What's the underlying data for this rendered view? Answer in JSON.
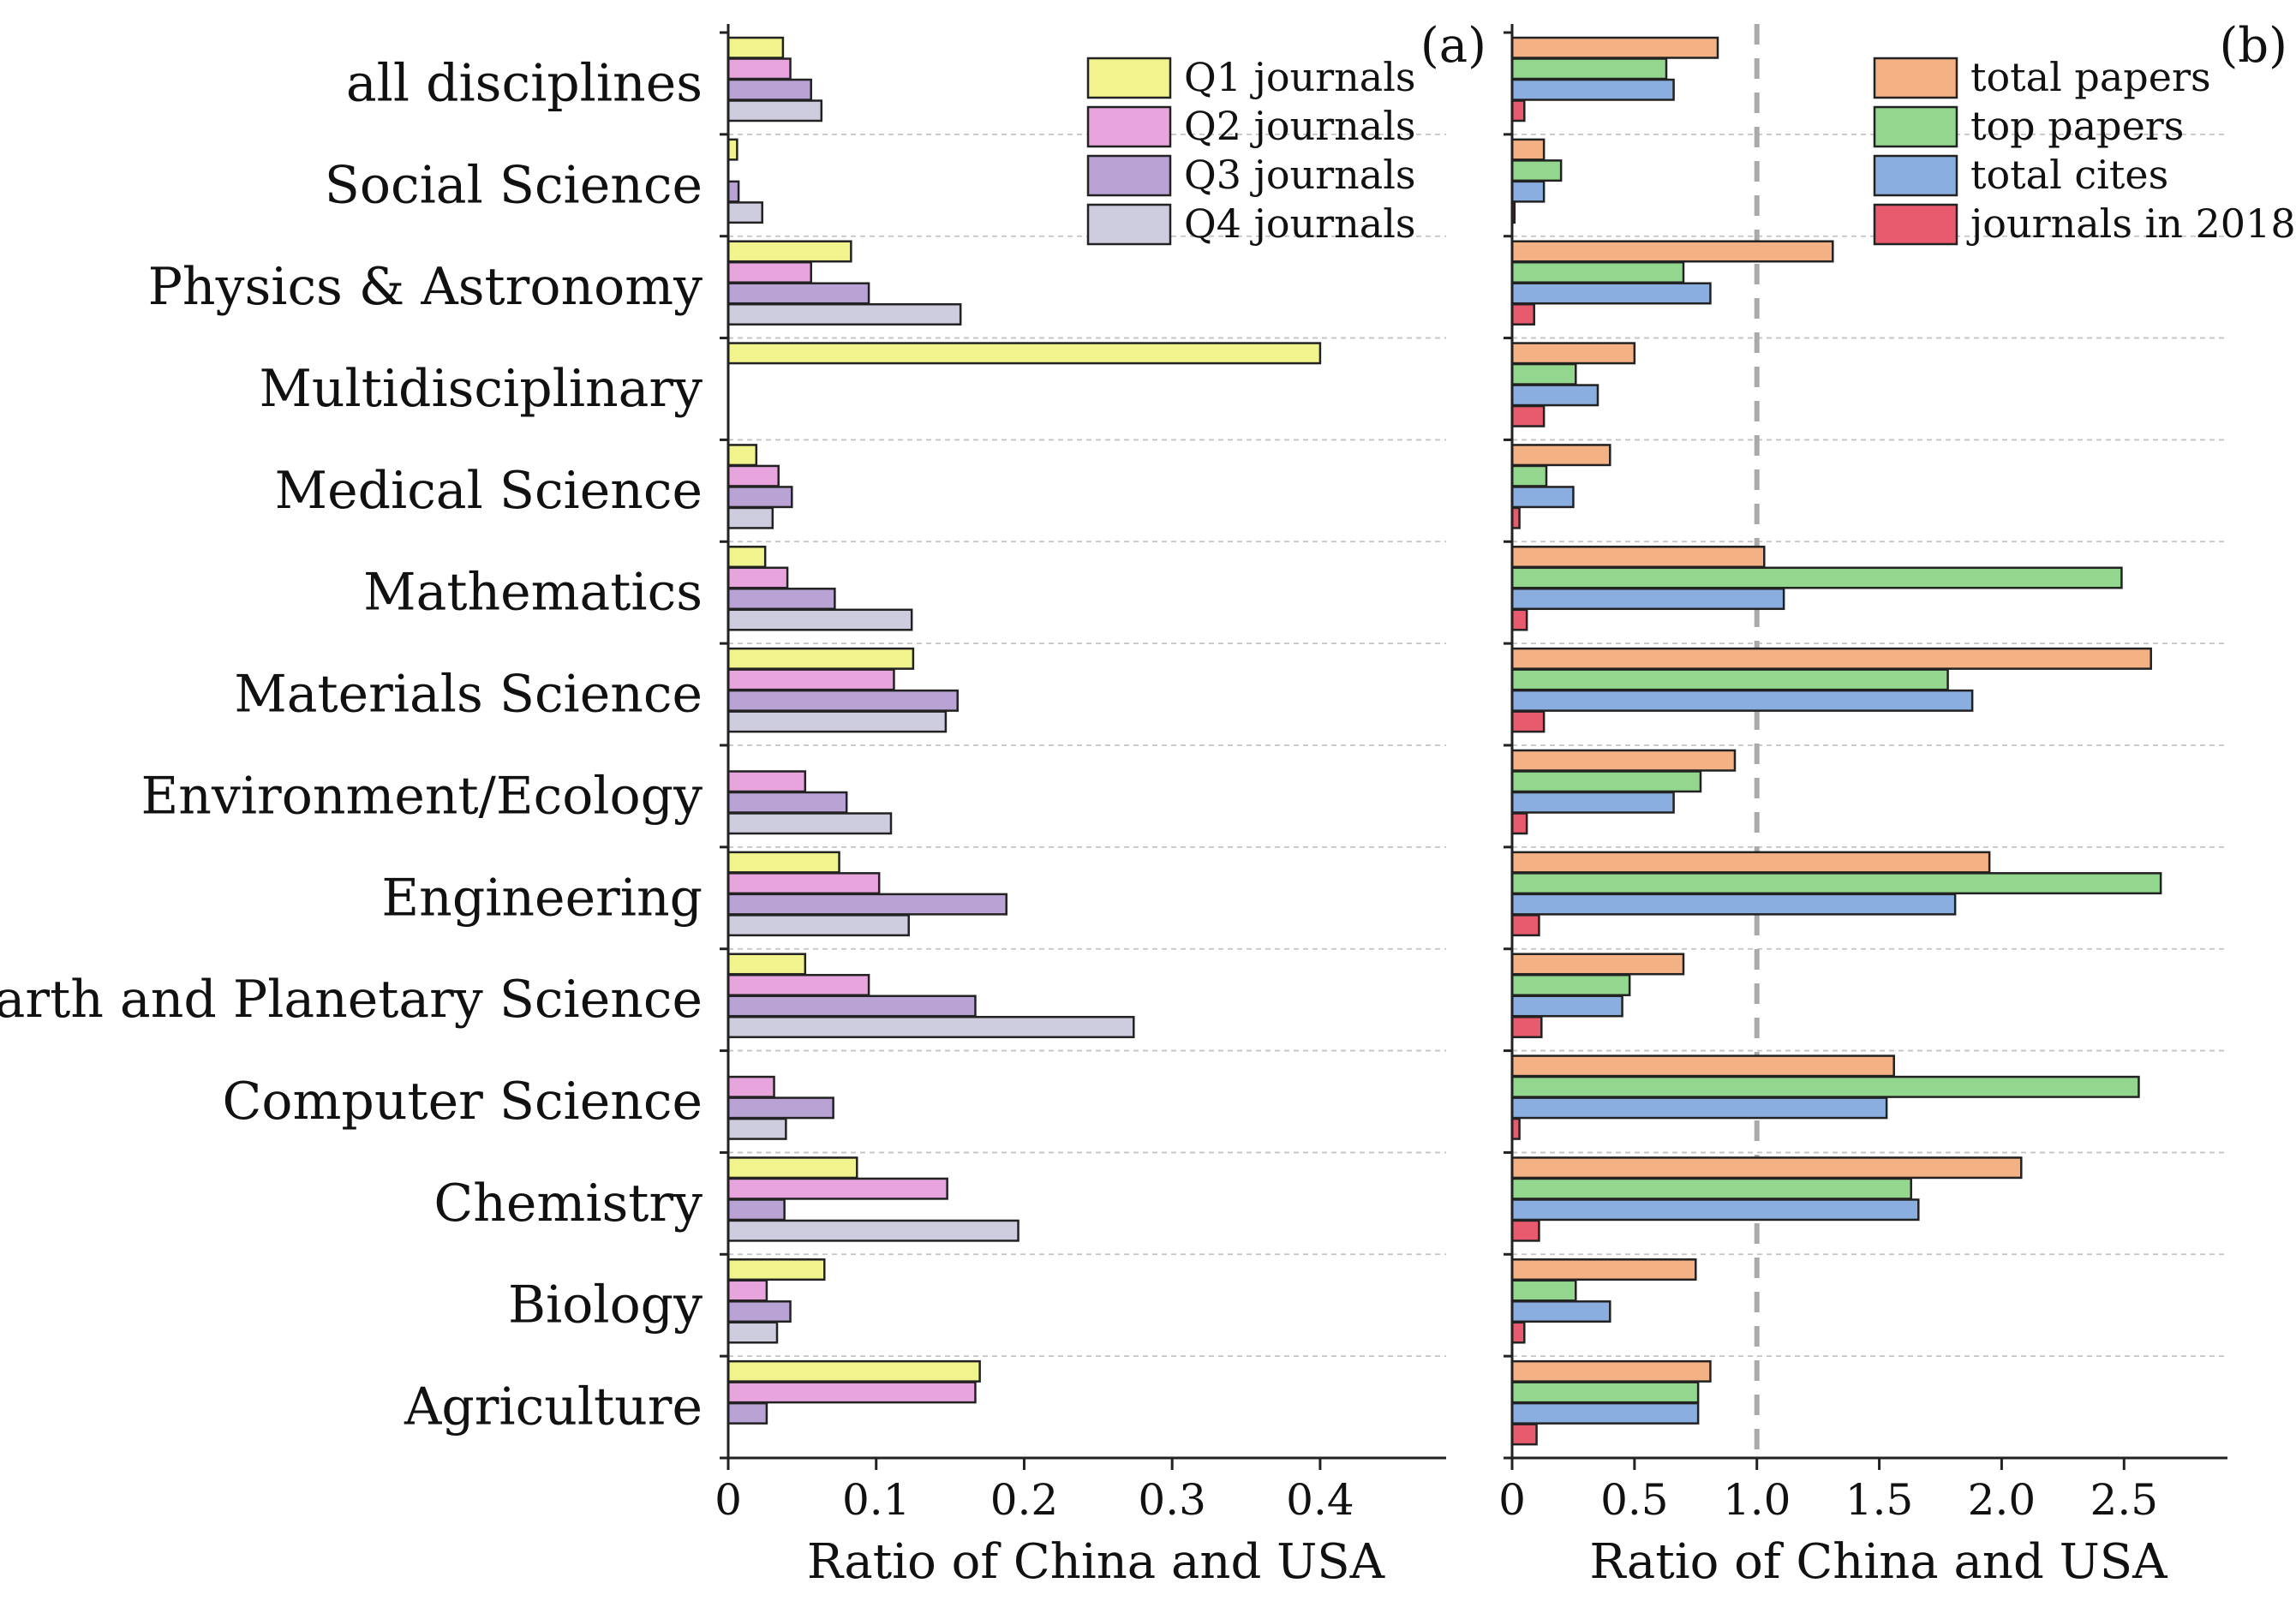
{
  "chart_data": [
    {
      "panel": "(a)",
      "type": "bar",
      "orientation": "horizontal",
      "xlabel": "Ratio of China and USA",
      "xlim": [
        0,
        0.44
      ],
      "xticks": [
        0,
        0.1,
        0.2,
        0.3,
        0.4
      ],
      "xtick_labels": [
        "0",
        "0.1",
        "0.2",
        "0.3",
        "0.4"
      ],
      "legend_position": "top-right",
      "grid": false,
      "categories": [
        "all disciplines",
        "Social Science",
        "Physics & Astronomy",
        "Multidisciplinary",
        "Medical Science",
        "Mathematics",
        "Materials Science",
        "Environment/Ecology",
        "Engineering",
        "Earth and Planetary Science",
        "Computer Science",
        "Chemistry",
        "Biology",
        "Agriculture"
      ],
      "series": [
        {
          "name": "Q1 journals",
          "color": "#f1f38c",
          "values": [
            0.037,
            0.006,
            0.083,
            0.4,
            0.019,
            0.025,
            0.125,
            null,
            0.075,
            0.052,
            null,
            0.087,
            0.065,
            0.17
          ]
        },
        {
          "name": "Q2 journals",
          "color": "#e8a4dc",
          "values": [
            0.042,
            null,
            0.056,
            null,
            0.034,
            0.04,
            0.112,
            0.052,
            0.102,
            0.095,
            0.031,
            0.148,
            0.026,
            0.167
          ]
        },
        {
          "name": "Q3 journals",
          "color": "#b8a3d4",
          "values": [
            0.056,
            0.007,
            0.095,
            null,
            0.043,
            0.072,
            0.155,
            0.08,
            0.188,
            0.167,
            0.071,
            0.038,
            0.042,
            0.026
          ]
        },
        {
          "name": "Q4 journals",
          "color": "#ceccdf",
          "values": [
            0.063,
            0.023,
            0.157,
            null,
            0.03,
            0.124,
            0.147,
            0.11,
            0.122,
            0.274,
            0.039,
            0.196,
            0.033,
            null
          ]
        }
      ]
    },
    {
      "panel": "(b)",
      "type": "bar",
      "orientation": "horizontal",
      "xlabel": "Ratio of China and USA",
      "xlim": [
        0,
        2.8
      ],
      "xticks": [
        0,
        0.5,
        1.0,
        1.5,
        2.0,
        2.5
      ],
      "xtick_labels": [
        "0",
        "0.5",
        "1.0",
        "1.5",
        "2.0",
        "2.5"
      ],
      "reference_line": 1.0,
      "legend_position": "top-right",
      "grid": false,
      "categories": [
        "all disciplines",
        "Social Science",
        "Physics & Astronomy",
        "Multidisciplinary",
        "Medical Science",
        "Mathematics",
        "Materials Science",
        "Environment/Ecology",
        "Engineering",
        "Earth and Planetary Science",
        "Computer Science",
        "Chemistry",
        "Biology",
        "Agriculture"
      ],
      "series": [
        {
          "name": "total papers",
          "color": "#f4b184",
          "values": [
            0.84,
            0.13,
            1.31,
            0.5,
            0.4,
            1.03,
            2.61,
            0.91,
            1.95,
            0.7,
            1.56,
            2.08,
            0.75,
            0.81
          ]
        },
        {
          "name": "top papers",
          "color": "#92d78d",
          "values": [
            0.63,
            0.2,
            0.7,
            0.26,
            0.14,
            2.49,
            1.78,
            0.77,
            2.65,
            0.48,
            2.56,
            1.63,
            0.26,
            0.76
          ]
        },
        {
          "name": "total cites",
          "color": "#8aaee0",
          "values": [
            0.66,
            0.13,
            0.81,
            0.35,
            0.25,
            1.11,
            1.88,
            0.66,
            1.81,
            0.45,
            1.53,
            1.66,
            0.4,
            0.76
          ]
        },
        {
          "name": "journals in 2018",
          "color": "#e85a6e",
          "values": [
            0.05,
            0.01,
            0.09,
            0.13,
            0.03,
            0.06,
            0.13,
            0.06,
            0.11,
            0.12,
            0.03,
            0.11,
            0.05,
            0.1
          ]
        }
      ]
    }
  ]
}
